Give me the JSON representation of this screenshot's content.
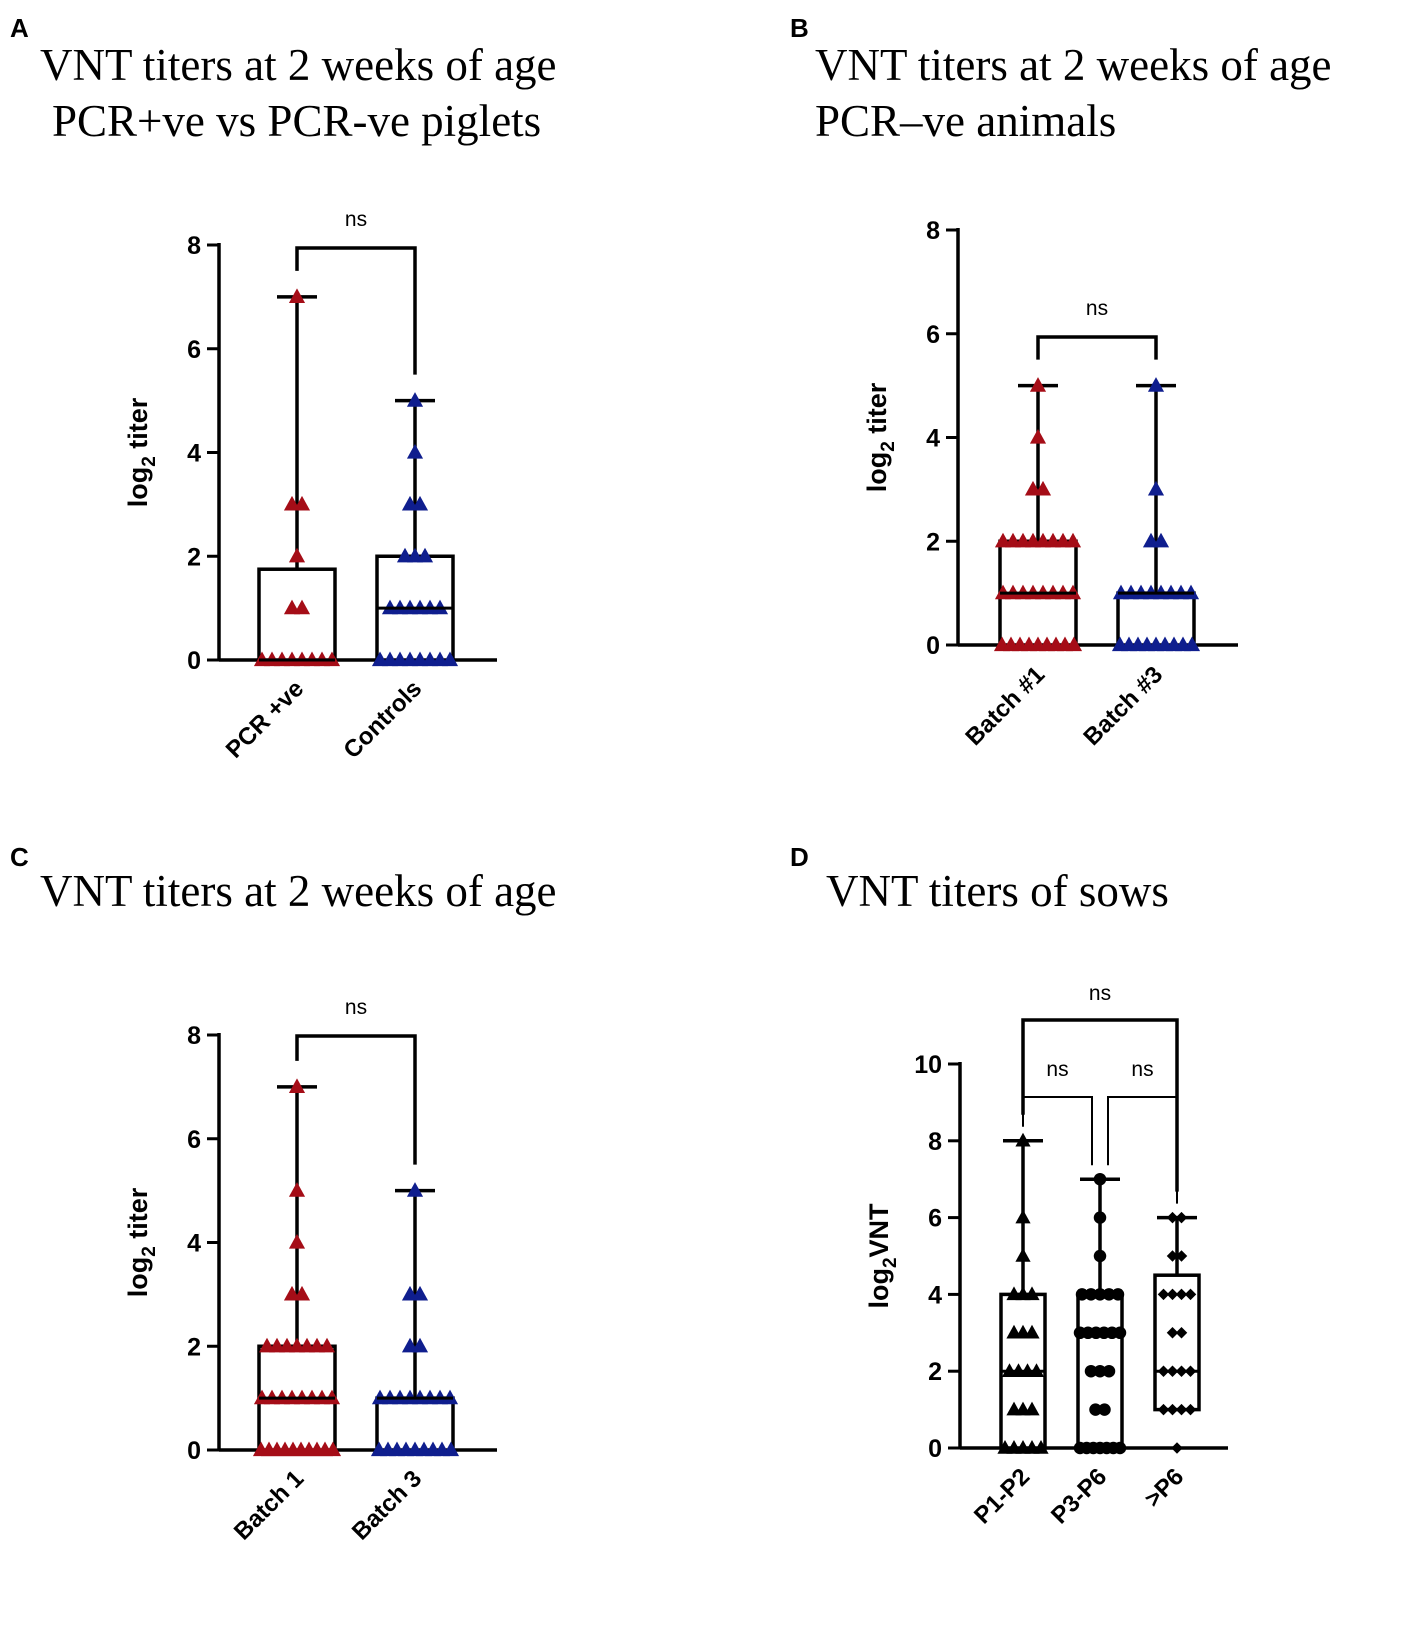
{
  "colors": {
    "red": "#a50d17",
    "blue": "#0f1e8e",
    "black": "#000000",
    "median_light": "#cfcfcf"
  },
  "chart_data": [
    {
      "panel": "A",
      "type": "box",
      "title_lines": [
        "VNT titers at 2 weeks of age",
        "PCR+ve vs PCR-ve piglets"
      ],
      "ylabel": "log2 titer",
      "ylabel_main": "log",
      "ylabel_sub": "2",
      "ylabel_rest": " titer",
      "ylim": [
        0,
        8
      ],
      "yticks": [
        0,
        2,
        4,
        6,
        8
      ],
      "ytick_labels": [
        "0",
        "2",
        "4",
        "6",
        "8"
      ],
      "categories": [
        "PCR +ve",
        "Controls"
      ],
      "series": [
        {
          "name": "PCR +ve",
          "marker": "triangle",
          "color": "red",
          "min": 0,
          "q1": 0,
          "median": 0,
          "q3": 1.75,
          "max": 7,
          "points": [
            0,
            0,
            0,
            0,
            0,
            0,
            0,
            0,
            1,
            1,
            2,
            3,
            3,
            7
          ]
        },
        {
          "name": "Controls",
          "marker": "triangle",
          "color": "blue",
          "min": 0,
          "q1": 0,
          "median": 1,
          "q3": 2,
          "max": 5,
          "points": [
            0,
            0,
            0,
            0,
            0,
            0,
            0,
            0,
            1,
            1,
            1,
            1,
            1,
            1,
            2,
            2,
            2,
            3,
            3,
            4,
            5
          ]
        }
      ],
      "comparisons": [
        {
          "from": 0,
          "to": 1,
          "label": "ns",
          "level": 0
        }
      ]
    },
    {
      "panel": "B",
      "type": "box",
      "title_lines": [
        "VNT titers at 2 weeks of age",
        "PCR–ve animals"
      ],
      "ylabel": "log2 titer",
      "ylabel_main": "log",
      "ylabel_sub": "2",
      "ylabel_rest": " titer",
      "ylim": [
        0,
        8
      ],
      "yticks": [
        0,
        2,
        4,
        6,
        8
      ],
      "ytick_labels": [
        "0",
        "2",
        "4",
        "6",
        "8"
      ],
      "categories": [
        "Batch #1",
        "Batch #3"
      ],
      "series": [
        {
          "name": "Batch #1",
          "marker": "triangle",
          "color": "red",
          "min": 0,
          "q1": 0,
          "median": 1,
          "q3": 2,
          "max": 5,
          "points": [
            0,
            0,
            0,
            0,
            0,
            0,
            0,
            0,
            0,
            1,
            1,
            1,
            1,
            1,
            1,
            1,
            1,
            2,
            2,
            2,
            2,
            2,
            2,
            2,
            2,
            3,
            3,
            4,
            5
          ]
        },
        {
          "name": "Batch #3",
          "marker": "triangle",
          "color": "blue",
          "min": 0,
          "q1": 0,
          "median": 1,
          "q3": 1,
          "max": 5,
          "points": [
            0,
            0,
            0,
            0,
            0,
            0,
            0,
            0,
            0,
            1,
            1,
            1,
            1,
            1,
            1,
            1,
            1,
            2,
            2,
            3,
            5
          ]
        }
      ],
      "comparisons": [
        {
          "from": 0,
          "to": 1,
          "label": "ns",
          "level": 0
        }
      ]
    },
    {
      "panel": "C",
      "type": "box",
      "title_lines": [
        "VNT titers at 2 weeks of age"
      ],
      "ylabel": "log2 titer",
      "ylabel_main": "log",
      "ylabel_sub": "2",
      "ylabel_rest": " titer",
      "ylim": [
        0,
        8
      ],
      "yticks": [
        0,
        2,
        4,
        6,
        8
      ],
      "ytick_labels": [
        "0",
        "2",
        "4",
        "6",
        "8"
      ],
      "categories": [
        "Batch 1",
        "Batch 3"
      ],
      "series": [
        {
          "name": "Batch 1",
          "marker": "triangle",
          "color": "red",
          "min": 0,
          "q1": 0,
          "median": 1,
          "q3": 2,
          "max": 7,
          "points": [
            0,
            0,
            0,
            0,
            0,
            0,
            0,
            0,
            0,
            0,
            1,
            1,
            1,
            1,
            1,
            1,
            1,
            1,
            2,
            2,
            2,
            2,
            2,
            2,
            2,
            3,
            3,
            4,
            5,
            7
          ]
        },
        {
          "name": "Batch 3",
          "marker": "triangle",
          "color": "blue",
          "min": 0,
          "q1": 0,
          "median": 1,
          "q3": 1,
          "max": 5,
          "points": [
            0,
            0,
            0,
            0,
            0,
            0,
            0,
            0,
            0,
            1,
            1,
            1,
            1,
            1,
            1,
            1,
            1,
            2,
            2,
            3,
            3,
            5
          ]
        }
      ],
      "comparisons": [
        {
          "from": 0,
          "to": 1,
          "label": "ns",
          "level": 0
        }
      ]
    },
    {
      "panel": "D",
      "type": "box",
      "title_lines": [
        "VNT titers of sows"
      ],
      "ylabel": "log2VNT",
      "ylabel_main": "log",
      "ylabel_sub": "2",
      "ylabel_rest": "VNT",
      "ylim": [
        0,
        10
      ],
      "yticks": [
        0,
        2,
        4,
        6,
        8,
        10
      ],
      "ytick_labels": [
        "0",
        "2",
        "4",
        "6",
        "8",
        "10"
      ],
      "categories": [
        "P1-P2",
        "P3-P6",
        ">P6"
      ],
      "series": [
        {
          "name": "P1-P2",
          "marker": "triangle",
          "color": "black",
          "min": 0,
          "q1": 0,
          "median": 2,
          "q3": 4,
          "max": 8,
          "points": [
            0,
            0,
            0,
            0,
            0,
            1,
            1,
            1,
            2,
            2,
            2,
            2,
            3,
            3,
            3,
            4,
            4,
            4,
            5,
            6,
            8
          ]
        },
        {
          "name": "P3-P6",
          "marker": "circle",
          "color": "black",
          "min": 0,
          "q1": 0,
          "median": 3,
          "q3": 4,
          "max": 7,
          "points": [
            0,
            0,
            0,
            0,
            0,
            0,
            0,
            1,
            1,
            2,
            2,
            2,
            3,
            3,
            3,
            3,
            3,
            3,
            4,
            4,
            4,
            4,
            4,
            5,
            6,
            7
          ]
        },
        {
          "name": ">P6",
          "marker": "diamond",
          "color": "black",
          "min": 0,
          "q1": 1,
          "median": 2,
          "q3": 4.5,
          "max": 6,
          "points": [
            0,
            1,
            1,
            1,
            1,
            2,
            2,
            2,
            2,
            3,
            3,
            4,
            4,
            4,
            4,
            5,
            5,
            6,
            6
          ]
        }
      ],
      "comparisons": [
        {
          "from": 0,
          "to": 1,
          "label": "ns",
          "level": 0
        },
        {
          "from": 1,
          "to": 2,
          "label": "ns",
          "level": 0
        },
        {
          "from": 0,
          "to": 2,
          "label": "ns",
          "level": 1
        }
      ]
    }
  ]
}
